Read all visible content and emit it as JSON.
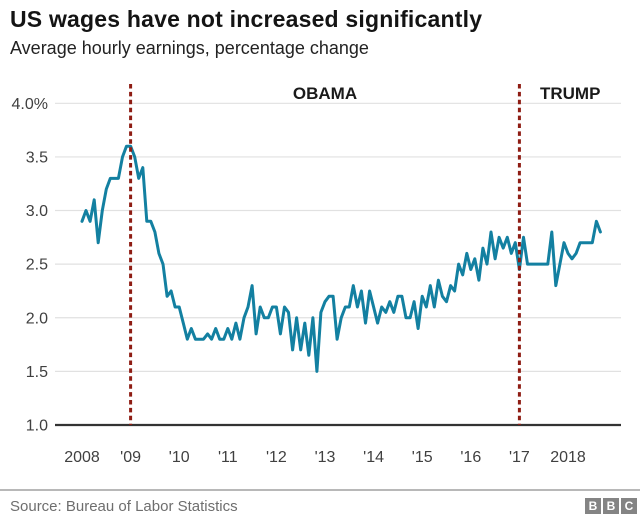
{
  "header": {
    "title": "US wages have not increased significantly",
    "subtitle": "Average hourly earnings, percentage change"
  },
  "chart_data": {
    "type": "line",
    "title": "US wages have not increased significantly",
    "subtitle": "Average hourly earnings, percentage change",
    "xlabel": "",
    "ylabel": "",
    "ylim": [
      1.0,
      4.0
    ],
    "grid": "horizontal",
    "legend": "none",
    "y_ticks": [
      {
        "value": 4.0,
        "label": "4.0%"
      },
      {
        "value": 3.5,
        "label": "3.5"
      },
      {
        "value": 3.0,
        "label": "3.0"
      },
      {
        "value": 2.5,
        "label": "2.5"
      },
      {
        "value": 2.0,
        "label": "2.0"
      },
      {
        "value": 1.5,
        "label": "1.5"
      },
      {
        "value": 1.0,
        "label": "1.0"
      }
    ],
    "x_ticks": [
      {
        "label": "2008",
        "date": "2008-01"
      },
      {
        "label": "'09",
        "date": "2009-01"
      },
      {
        "label": "'10",
        "date": "2010-01"
      },
      {
        "label": "'11",
        "date": "2011-01"
      },
      {
        "label": "'12",
        "date": "2012-01"
      },
      {
        "label": "'13",
        "date": "2013-01"
      },
      {
        "label": "'14",
        "date": "2014-01"
      },
      {
        "label": "'15",
        "date": "2015-01"
      },
      {
        "label": "'16",
        "date": "2016-01"
      },
      {
        "label": "'17",
        "date": "2017-01"
      },
      {
        "label": "2018",
        "date": "2018-01"
      }
    ],
    "annotations": [
      {
        "type": "vline",
        "date": "2009-01",
        "label": "OBAMA",
        "color": "#8e1c13",
        "style": "dotted"
      },
      {
        "type": "vline",
        "date": "2017-01",
        "label": "TRUMP",
        "color": "#8e1c13",
        "style": "dotted"
      }
    ],
    "series": [
      {
        "name": "Average hourly earnings, percentage change",
        "color": "#1380a1",
        "start": "2008-01",
        "frequency": "monthly",
        "values": [
          2.9,
          3.0,
          2.9,
          3.1,
          2.7,
          3.0,
          3.2,
          3.3,
          3.3,
          3.3,
          3.5,
          3.6,
          3.6,
          3.5,
          3.3,
          3.4,
          2.9,
          2.9,
          2.8,
          2.6,
          2.5,
          2.2,
          2.25,
          2.1,
          2.1,
          1.95,
          1.8,
          1.9,
          1.8,
          1.8,
          1.8,
          1.85,
          1.8,
          1.9,
          1.8,
          1.8,
          1.9,
          1.8,
          1.95,
          1.8,
          2.0,
          2.1,
          2.3,
          1.85,
          2.1,
          2.0,
          2.0,
          2.1,
          2.1,
          1.85,
          2.1,
          2.05,
          1.7,
          2.0,
          1.7,
          1.95,
          1.65,
          2.0,
          1.5,
          2.05,
          2.15,
          2.2,
          2.2,
          1.8,
          2.0,
          2.1,
          2.1,
          2.3,
          2.1,
          2.25,
          1.95,
          2.25,
          2.1,
          1.95,
          2.1,
          2.05,
          2.15,
          2.05,
          2.2,
          2.2,
          2.0,
          2.0,
          2.15,
          1.9,
          2.2,
          2.1,
          2.3,
          2.1,
          2.35,
          2.2,
          2.15,
          2.3,
          2.25,
          2.5,
          2.4,
          2.6,
          2.45,
          2.55,
          2.35,
          2.65,
          2.5,
          2.8,
          2.55,
          2.75,
          2.65,
          2.75,
          2.6,
          2.7,
          2.45,
          2.75,
          2.5,
          2.5,
          2.5,
          2.5,
          2.5,
          2.5,
          2.8,
          2.3,
          2.5,
          2.7,
          2.6,
          2.55,
          2.6,
          2.7,
          2.7,
          2.7,
          2.7,
          2.9,
          2.8
        ]
      }
    ]
  },
  "footer": {
    "source": "Source: Bureau of Labor Statistics",
    "logo_letters": [
      "B",
      "B",
      "C"
    ]
  },
  "colors": {
    "line": "#1380a1",
    "president_line": "#8e1c13",
    "grid": "#e1e1e1",
    "baseline": "#333333",
    "axis_text": "#404040",
    "president_text": "#1a1a1a",
    "title_text": "#141414",
    "source_text": "#6e6e6e",
    "logo_gray": "#848484"
  }
}
